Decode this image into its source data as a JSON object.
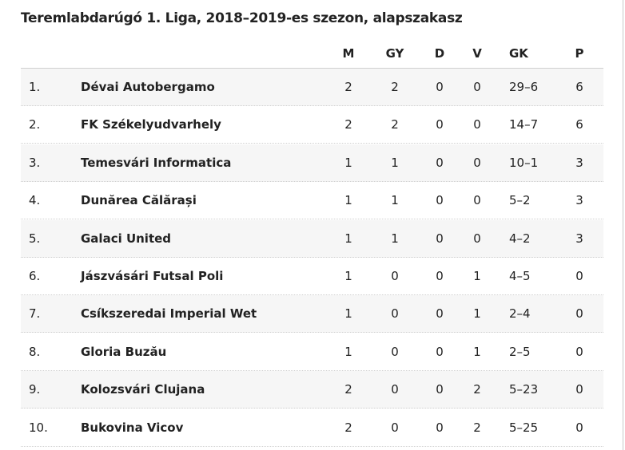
{
  "header": {
    "title": "Teremlabdarúgó 1. Liga, 2018–2019-es szezon, alapszakasz"
  },
  "table": {
    "columns": [
      "M",
      "GY",
      "D",
      "V",
      "GK",
      "P"
    ],
    "rows": [
      [
        "1.",
        "Dévai Autobergamo",
        2,
        2,
        0,
        0,
        "29–6",
        6
      ],
      [
        "2.",
        "FK Székelyudvarhely",
        2,
        2,
        0,
        0,
        "14–7",
        6
      ],
      [
        "3.",
        "Temesvári Informatica",
        1,
        1,
        0,
        0,
        "10–1",
        3
      ],
      [
        "4.",
        "Dunărea Călărași",
        1,
        1,
        0,
        0,
        "5–2",
        3
      ],
      [
        "5.",
        "Galaci United",
        1,
        1,
        0,
        0,
        "4–2",
        3
      ],
      [
        "6.",
        "Jászvásári Futsal Poli",
        1,
        0,
        0,
        1,
        "4–5",
        0
      ],
      [
        "7.",
        "Csíkszeredai Imperial Wet",
        1,
        0,
        0,
        1,
        "2–4",
        0
      ],
      [
        "8.",
        "Gloria Buzău",
        1,
        0,
        0,
        1,
        "2–5",
        0
      ],
      [
        "9.",
        "Kolozsvári Clujana",
        2,
        0,
        0,
        2,
        "5–23",
        0
      ],
      [
        "10.",
        "Bukovina Vicov",
        2,
        0,
        0,
        2,
        "5–25",
        0
      ]
    ]
  }
}
